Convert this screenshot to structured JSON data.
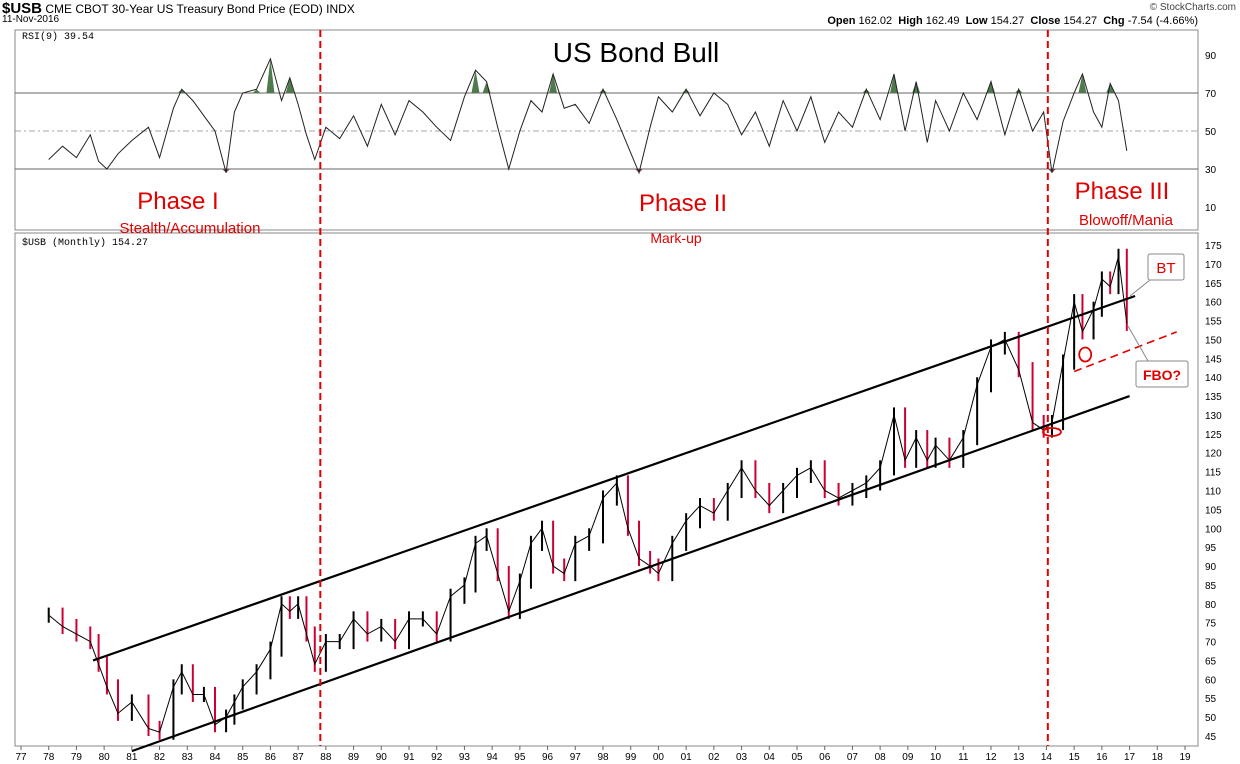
{
  "header": {
    "symbol": "$USB",
    "description": "CME CBOT 30-Year US Treasury Bond Price (EOD)",
    "exchange": "INDX",
    "date": "11-Nov-2016",
    "brand": "© StockCharts.com",
    "ohlc": [
      {
        "label": "Open",
        "value": "162.02"
      },
      {
        "label": "High",
        "value": "162.49"
      },
      {
        "label": "Low",
        "value": "154.27"
      },
      {
        "label": "Close",
        "value": "154.27"
      },
      {
        "label": "Chg",
        "value": "-7.54 (-4.66%)"
      }
    ]
  },
  "chart_data": [
    {
      "type": "line",
      "panel": "RSI",
      "legend": "RSI(9) 39.54",
      "ylim": [
        0,
        100
      ],
      "y_ticks": [
        10,
        30,
        50,
        70,
        90
      ],
      "reference_lines": [
        30,
        50,
        70
      ],
      "x": [
        1978.0,
        1978.5,
        1979.0,
        1979.5,
        1979.8,
        1980.1,
        1980.5,
        1981.0,
        1981.6,
        1982.0,
        1982.5,
        1982.8,
        1983.2,
        1983.6,
        1984.0,
        1984.4,
        1984.7,
        1985.0,
        1985.5,
        1986.0,
        1986.4,
        1986.7,
        1987.0,
        1987.3,
        1987.6,
        1988.0,
        1988.5,
        1989.0,
        1989.5,
        1990.0,
        1990.5,
        1991.0,
        1991.5,
        1992.0,
        1992.5,
        1993.0,
        1993.4,
        1993.8,
        1994.2,
        1994.6,
        1995.0,
        1995.4,
        1995.8,
        1996.2,
        1996.6,
        1997.0,
        1997.5,
        1998.0,
        1998.5,
        1998.9,
        1999.3,
        1999.7,
        2000.0,
        2000.5,
        2001.0,
        2001.5,
        2002.0,
        2002.5,
        2003.0,
        2003.5,
        2004.0,
        2004.5,
        2005.0,
        2005.5,
        2006.0,
        2006.5,
        2007.0,
        2007.5,
        2008.0,
        2008.5,
        2008.9,
        2009.3,
        2009.7,
        2010.0,
        2010.5,
        2011.0,
        2011.5,
        2012.0,
        2012.5,
        2013.0,
        2013.5,
        2013.9,
        2014.2,
        2014.6,
        2015.0,
        2015.3,
        2015.7,
        2016.0,
        2016.3,
        2016.6,
        2016.9
      ],
      "values": [
        35,
        42,
        36,
        48,
        34,
        30,
        38,
        45,
        52,
        36,
        62,
        72,
        66,
        58,
        50,
        28,
        60,
        70,
        72,
        88,
        66,
        78,
        64,
        48,
        35,
        52,
        46,
        58,
        42,
        64,
        48,
        66,
        60,
        52,
        45,
        68,
        82,
        76,
        52,
        30,
        50,
        66,
        60,
        80,
        62,
        64,
        54,
        72,
        56,
        42,
        28,
        52,
        68,
        60,
        72,
        58,
        70,
        64,
        48,
        60,
        42,
        66,
        50,
        68,
        44,
        60,
        52,
        72,
        56,
        80,
        50,
        76,
        44,
        66,
        50,
        70,
        56,
        76,
        48,
        72,
        50,
        60,
        28,
        55,
        70,
        80,
        60,
        52,
        75,
        66,
        39.54
      ]
    },
    {
      "type": "line",
      "panel": "Price",
      "legend": "$USB (Monthly) 154.27",
      "ylim": [
        43,
        178
      ],
      "y_ticks": [
        45,
        50,
        55,
        60,
        65,
        70,
        75,
        80,
        85,
        90,
        95,
        100,
        105,
        110,
        115,
        120,
        125,
        130,
        135,
        140,
        145,
        150,
        155,
        160,
        165,
        170,
        175
      ],
      "x_tick_labels": [
        "77",
        "78",
        "79",
        "80",
        "81",
        "82",
        "83",
        "84",
        "85",
        "86",
        "87",
        "88",
        "89",
        "90",
        "91",
        "92",
        "93",
        "94",
        "95",
        "96",
        "97",
        "98",
        "99",
        "00",
        "01",
        "02",
        "03",
        "04",
        "05",
        "06",
        "07",
        "08",
        "09",
        "10",
        "11",
        "12",
        "13",
        "14",
        "15",
        "16",
        "17",
        "18",
        "19"
      ],
      "x": [
        1978.0,
        1978.5,
        1979.0,
        1979.5,
        1979.8,
        1980.1,
        1980.5,
        1981.0,
        1981.6,
        1982.0,
        1982.5,
        1982.8,
        1983.2,
        1983.6,
        1984.0,
        1984.4,
        1984.7,
        1985.0,
        1985.5,
        1986.0,
        1986.4,
        1986.7,
        1987.0,
        1987.3,
        1987.6,
        1988.0,
        1988.5,
        1989.0,
        1989.5,
        1990.0,
        1990.5,
        1991.0,
        1991.5,
        1992.0,
        1992.5,
        1993.0,
        1993.4,
        1993.8,
        1994.2,
        1994.6,
        1995.0,
        1995.4,
        1995.8,
        1996.2,
        1996.6,
        1997.0,
        1997.5,
        1998.0,
        1998.5,
        1998.9,
        1999.3,
        1999.7,
        2000.0,
        2000.5,
        2001.0,
        2001.5,
        2002.0,
        2002.5,
        2003.0,
        2003.5,
        2004.0,
        2004.5,
        2005.0,
        2005.5,
        2006.0,
        2006.5,
        2007.0,
        2007.5,
        2008.0,
        2008.5,
        2008.9,
        2009.3,
        2009.7,
        2010.0,
        2010.5,
        2011.0,
        2011.5,
        2012.0,
        2012.5,
        2013.0,
        2013.5,
        2013.9,
        2014.2,
        2014.6,
        2015.0,
        2015.3,
        2015.7,
        2016.0,
        2016.3,
        2016.6,
        2016.9
      ],
      "values": [
        77,
        74,
        72,
        70,
        64,
        58,
        51,
        54,
        47,
        46,
        58,
        62,
        56,
        56,
        48,
        50,
        54,
        58,
        62,
        68,
        80,
        78,
        80,
        72,
        64,
        70,
        70,
        76,
        72,
        74,
        70,
        76,
        76,
        72,
        82,
        85,
        96,
        98,
        88,
        78,
        86,
        96,
        100,
        90,
        88,
        96,
        98,
        108,
        112,
        100,
        92,
        90,
        88,
        96,
        102,
        106,
        104,
        110,
        116,
        110,
        106,
        110,
        114,
        116,
        110,
        108,
        110,
        112,
        116,
        130,
        118,
        124,
        118,
        122,
        118,
        124,
        138,
        148,
        150,
        142,
        128,
        126,
        128,
        144,
        160,
        152,
        158,
        166,
        164,
        172,
        154.27
      ]
    }
  ],
  "annotations": {
    "title": "US Bond Bull",
    "phase1": "Phase I",
    "phase1_sub": "Stealth/Accumulation",
    "phase2": "Phase II",
    "phase2_sub": "Mark-up",
    "phase3": "Phase III",
    "phase3_sub": "Blowoff/Mania",
    "bt": "BT",
    "fbo": "FBO?",
    "phase_dividers": [
      1987.8,
      2014.05
    ],
    "channel_lines": [
      {
        "x": [
          1979.6,
          2017.2
        ],
        "y": [
          65,
          161.5
        ]
      },
      {
        "x": [
          1981.0,
          2017.0
        ],
        "y": [
          41,
          135
        ]
      }
    ],
    "dashed_support": {
      "x": [
        2015.0,
        2018.7
      ],
      "y": [
        141.5,
        152
      ]
    },
    "accent_color": "#e00000",
    "rsi_up_fill": "#4e7a4e",
    "rsi_down_fill": "#7a4e4e",
    "bar_up_color": "#000000",
    "bar_down_color": "#cc0033"
  }
}
